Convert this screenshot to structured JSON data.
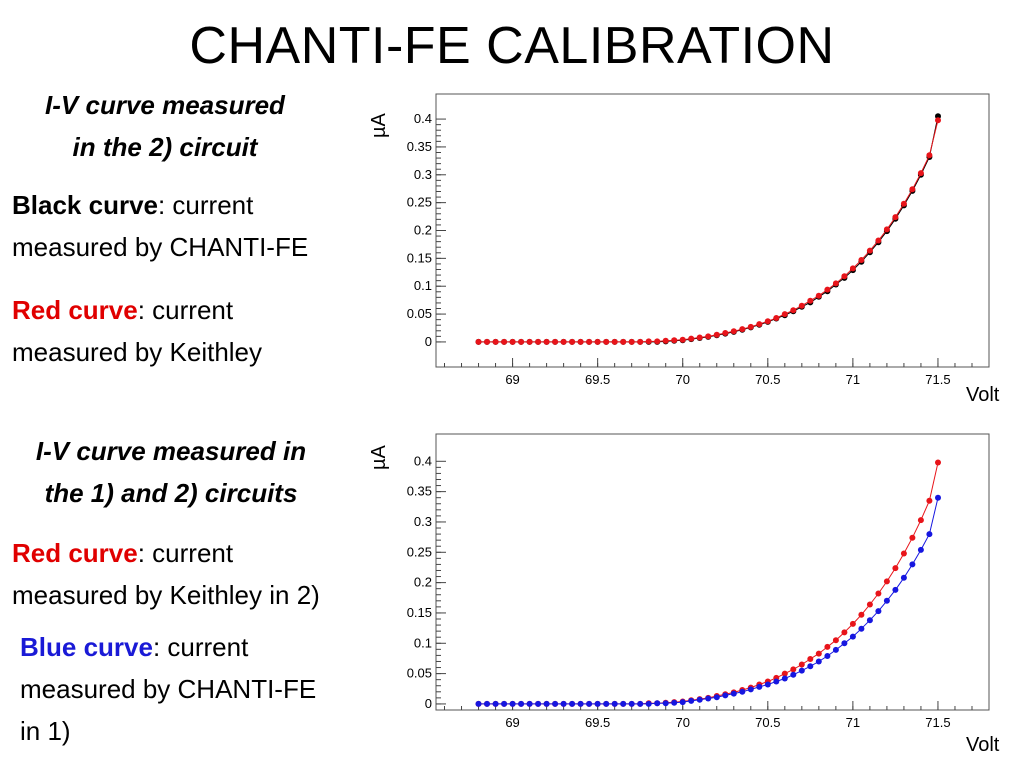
{
  "slide": {
    "title": "CHANTI-FE CALIBRATION"
  },
  "colors": {
    "black": "#000000",
    "red": "#e8141a",
    "blue": "#1616e0",
    "text_red": "#e00000",
    "text_blue": "#1a1ad6"
  },
  "panel1": {
    "heading_line1": "I-V curve measured",
    "heading_line2": "in the 2) circuit",
    "black_label": "Black curve",
    "black_desc1": ": current",
    "black_desc2": "measured by CHANTI-FE",
    "red_label": "Red curve",
    "red_desc1": ": current",
    "red_desc2": "measured by Keithley"
  },
  "panel2": {
    "heading_line1": "I-V curve measured in",
    "heading_line2": "the 1) and 2) circuits",
    "red_label": "Red curve",
    "red_desc1": ": current",
    "red_desc2": "measured by Keithley in 2)",
    "blue_label": "Blue curve",
    "blue_desc1": ": current",
    "blue_desc2": "measured by CHANTI-FE",
    "blue_desc3": "in 1)"
  },
  "chart_data": [
    {
      "type": "line",
      "title": "",
      "xlabel": "Volt",
      "ylabel": "µA",
      "xlim": [
        68.55,
        71.8
      ],
      "ylim": [
        -0.045,
        0.445
      ],
      "x_ticks": [
        "69",
        "69.5",
        "70",
        "70.5",
        "71",
        "71.5"
      ],
      "y_ticks": [
        "0",
        "0.05",
        "0.1",
        "0.15",
        "0.2",
        "0.25",
        "0.3",
        "0.35",
        "0.4"
      ],
      "grid": false,
      "x": [
        68.8,
        68.85,
        68.9,
        68.95,
        69.0,
        69.05,
        69.1,
        69.15,
        69.2,
        69.25,
        69.3,
        69.35,
        69.4,
        69.45,
        69.5,
        69.55,
        69.6,
        69.65,
        69.7,
        69.75,
        69.8,
        69.85,
        69.9,
        69.95,
        70.0,
        70.05,
        70.1,
        70.15,
        70.2,
        70.25,
        70.3,
        70.35,
        70.4,
        70.45,
        70.5,
        70.55,
        70.6,
        70.65,
        70.7,
        70.75,
        70.8,
        70.85,
        70.9,
        70.95,
        71.0,
        71.05,
        71.1,
        71.15,
        71.2,
        71.25,
        71.3,
        71.35,
        71.4,
        71.45,
        71.5
      ],
      "series": [
        {
          "color": "black",
          "values": [
            0,
            0,
            0,
            0,
            0,
            0,
            0,
            0,
            0,
            0,
            0,
            0,
            0,
            0,
            0,
            0,
            0,
            0,
            0,
            0,
            0,
            0,
            0.001,
            0.002,
            0.003,
            0.005,
            0.007,
            0.009,
            0.012,
            0.015,
            0.018,
            0.022,
            0.026,
            0.031,
            0.036,
            0.042,
            0.048,
            0.055,
            0.063,
            0.071,
            0.081,
            0.091,
            0.103,
            0.115,
            0.129,
            0.144,
            0.161,
            0.179,
            0.199,
            0.221,
            0.245,
            0.271,
            0.3,
            0.332,
            0.405
          ]
        },
        {
          "color": "red",
          "values": [
            0,
            0,
            0,
            0,
            0,
            0,
            0,
            0,
            0,
            0,
            0,
            0,
            0,
            0,
            0,
            0,
            0,
            0,
            0,
            0,
            0.001,
            0.001,
            0.002,
            0.003,
            0.004,
            0.006,
            0.008,
            0.01,
            0.013,
            0.016,
            0.019,
            0.023,
            0.027,
            0.032,
            0.037,
            0.043,
            0.05,
            0.057,
            0.065,
            0.074,
            0.083,
            0.094,
            0.105,
            0.118,
            0.132,
            0.147,
            0.164,
            0.182,
            0.202,
            0.224,
            0.248,
            0.274,
            0.303,
            0.335,
            0.398
          ]
        }
      ]
    },
    {
      "type": "line",
      "title": "",
      "xlabel": "Volt",
      "ylabel": "µA",
      "xlim": [
        68.55,
        71.8
      ],
      "ylim": [
        -0.01,
        0.445
      ],
      "x_ticks": [
        "69",
        "69.5",
        "70",
        "70.5",
        "71",
        "71.5"
      ],
      "y_ticks": [
        "0",
        "0.05",
        "0.1",
        "0.15",
        "0.2",
        "0.25",
        "0.3",
        "0.35",
        "0.4"
      ],
      "grid": false,
      "x": [
        68.8,
        68.85,
        68.9,
        68.95,
        69.0,
        69.05,
        69.1,
        69.15,
        69.2,
        69.25,
        69.3,
        69.35,
        69.4,
        69.45,
        69.5,
        69.55,
        69.6,
        69.65,
        69.7,
        69.75,
        69.8,
        69.85,
        69.9,
        69.95,
        70.0,
        70.05,
        70.1,
        70.15,
        70.2,
        70.25,
        70.3,
        70.35,
        70.4,
        70.45,
        70.5,
        70.55,
        70.6,
        70.65,
        70.7,
        70.75,
        70.8,
        70.85,
        70.9,
        70.95,
        71.0,
        71.05,
        71.1,
        71.15,
        71.2,
        71.25,
        71.3,
        71.35,
        71.4,
        71.45,
        71.5
      ],
      "series": [
        {
          "color": "red",
          "values": [
            0,
            0,
            0,
            0,
            0,
            0,
            0,
            0,
            0,
            0,
            0,
            0,
            0,
            0,
            0,
            0,
            0,
            0,
            0,
            0,
            0.001,
            0.001,
            0.002,
            0.003,
            0.004,
            0.006,
            0.008,
            0.01,
            0.013,
            0.016,
            0.019,
            0.023,
            0.027,
            0.032,
            0.037,
            0.043,
            0.05,
            0.057,
            0.065,
            0.074,
            0.083,
            0.094,
            0.105,
            0.118,
            0.132,
            0.147,
            0.164,
            0.182,
            0.202,
            0.224,
            0.248,
            0.274,
            0.303,
            0.335,
            0.398
          ]
        },
        {
          "color": "blue",
          "values": [
            0,
            0,
            0,
            0,
            0,
            0,
            0,
            0,
            0,
            0,
            0,
            0,
            0,
            0,
            0,
            0,
            0,
            0,
            0,
            0,
            0,
            0.001,
            0.001,
            0.002,
            0.003,
            0.005,
            0.007,
            0.009,
            0.011,
            0.014,
            0.017,
            0.02,
            0.024,
            0.028,
            0.032,
            0.037,
            0.042,
            0.048,
            0.055,
            0.062,
            0.07,
            0.079,
            0.089,
            0.1,
            0.111,
            0.124,
            0.138,
            0.153,
            0.17,
            0.188,
            0.208,
            0.23,
            0.254,
            0.28,
            0.34
          ]
        }
      ]
    }
  ]
}
